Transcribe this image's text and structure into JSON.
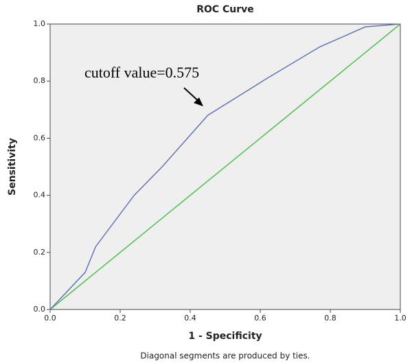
{
  "chart_data": {
    "type": "line",
    "title": "ROC Curve",
    "x_label": "1 - Specificity",
    "y_label": "Sensitivity",
    "footnote": "Diagonal segments are produced by ties.",
    "annotation": "cutoff value=0.575",
    "series": [
      {
        "color": "#6273b8",
        "x": [
          0,
          0.1,
          0.13,
          0.24,
          0.32,
          0.45,
          0.62,
          0.77,
          0.9,
          1
        ],
        "values": [
          0,
          0.13,
          0.22,
          0.4,
          0.5,
          0.68,
          0.81,
          0.92,
          0.99,
          1
        ]
      },
      {
        "color": "#4cbf4c",
        "x": [
          0,
          1
        ],
        "values": [
          0,
          1
        ]
      }
    ],
    "xlim": [
      0,
      1
    ],
    "ylim": [
      0,
      1
    ],
    "xticks": [
      {
        "value": 0,
        "label": "0.0"
      },
      0.2,
      0.4,
      0.6,
      0.8,
      {
        "value": 1,
        "label": "1.0"
      }
    ],
    "yticks": [
      {
        "value": 0,
        "label": "0.0"
      },
      0.2,
      0.4,
      0.6,
      0.8,
      {
        "value": 1,
        "label": "1.0"
      }
    ],
    "grid": false
  }
}
